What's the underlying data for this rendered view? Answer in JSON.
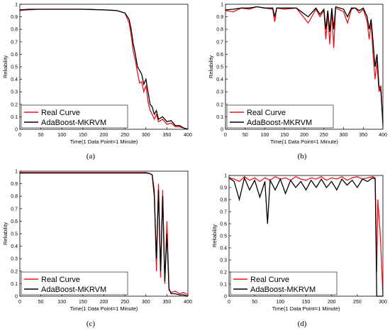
{
  "captions": [
    "(a)",
    "(b)",
    "(c)",
    "(d)"
  ],
  "chart_data": [
    {
      "type": "line",
      "xlabel": "Time(1 Data Point=1 Minute)",
      "ylabel": "Reliability",
      "xlim": [
        0,
        400
      ],
      "ylim": [
        0,
        1
      ],
      "xticks": [
        0,
        50,
        100,
        150,
        200,
        250,
        300,
        350,
        400
      ],
      "yticks": [
        0,
        0.1,
        0.2,
        0.3,
        0.4,
        0.5,
        0.6,
        0.7,
        0.8,
        0.9,
        1
      ],
      "legend": "bottom-left",
      "series": [
        {
          "name": "Real Curve",
          "color": "#e8161b",
          "x": [
            0,
            20,
            50,
            100,
            150,
            200,
            230,
            250,
            260,
            265,
            270,
            275,
            280,
            285,
            290,
            295,
            300,
            305,
            310,
            315,
            320,
            325,
            330,
            340,
            350,
            360,
            370,
            380,
            390,
            400
          ],
          "y": [
            0.95,
            0.955,
            0.96,
            0.96,
            0.96,
            0.955,
            0.95,
            0.93,
            0.85,
            0.75,
            0.62,
            0.55,
            0.45,
            0.37,
            0.38,
            0.3,
            0.35,
            0.22,
            0.15,
            0.12,
            0.08,
            0.12,
            0.06,
            0.08,
            0.04,
            0.05,
            0.02,
            0.02,
            0.01,
            0.0
          ]
        },
        {
          "name": "AdaBoost-MKRVM",
          "color": "#000000",
          "x": [
            0,
            20,
            50,
            100,
            150,
            200,
            230,
            250,
            260,
            265,
            270,
            275,
            280,
            285,
            290,
            295,
            300,
            305,
            310,
            315,
            320,
            325,
            330,
            340,
            350,
            360,
            370,
            380,
            390,
            400
          ],
          "y": [
            0.955,
            0.96,
            0.96,
            0.96,
            0.96,
            0.955,
            0.95,
            0.93,
            0.88,
            0.8,
            0.68,
            0.6,
            0.5,
            0.47,
            0.44,
            0.36,
            0.4,
            0.3,
            0.2,
            0.18,
            0.12,
            0.15,
            0.08,
            0.1,
            0.06,
            0.07,
            0.03,
            0.03,
            0.01,
            0.0
          ]
        }
      ]
    },
    {
      "type": "line",
      "xlabel": "Time(1 Data Point=1 Minute)",
      "ylabel": "Reliability",
      "xlim": [
        0,
        400
      ],
      "ylim": [
        0,
        1
      ],
      "xticks": [
        0,
        50,
        100,
        150,
        200,
        250,
        300,
        350,
        400
      ],
      "yticks": [
        0,
        0.1,
        0.2,
        0.3,
        0.4,
        0.5,
        0.6,
        0.7,
        0.8,
        0.9,
        1
      ],
      "legend": "bottom-left",
      "series": [
        {
          "name": "Real Curve",
          "color": "#e8161b",
          "x": [
            0,
            20,
            40,
            60,
            80,
            100,
            120,
            125,
            130,
            150,
            180,
            210,
            230,
            240,
            250,
            255,
            260,
            265,
            270,
            275,
            280,
            300,
            310,
            320,
            330,
            340,
            350,
            360,
            365,
            370,
            375,
            380,
            385,
            390,
            395,
            400
          ],
          "y": [
            0.95,
            0.94,
            0.97,
            0.96,
            0.98,
            0.97,
            0.96,
            0.86,
            0.97,
            0.96,
            0.97,
            0.85,
            0.96,
            0.9,
            0.95,
            0.72,
            0.92,
            0.68,
            0.95,
            0.65,
            0.97,
            0.94,
            0.85,
            0.96,
            0.97,
            0.93,
            0.96,
            0.86,
            0.72,
            0.85,
            0.6,
            0.4,
            0.55,
            0.3,
            0.35,
            0.02
          ]
        },
        {
          "name": "AdaBoost-MKRVM",
          "color": "#000000",
          "x": [
            0,
            20,
            40,
            60,
            80,
            100,
            120,
            125,
            130,
            150,
            180,
            210,
            230,
            240,
            250,
            255,
            260,
            265,
            270,
            275,
            280,
            300,
            310,
            320,
            330,
            340,
            350,
            360,
            365,
            370,
            375,
            380,
            385,
            390,
            395,
            400
          ],
          "y": [
            0.955,
            0.96,
            0.97,
            0.97,
            0.98,
            0.97,
            0.97,
            0.9,
            0.97,
            0.97,
            0.97,
            0.9,
            0.97,
            0.92,
            0.96,
            0.8,
            0.95,
            0.78,
            0.97,
            0.8,
            0.98,
            0.96,
            0.9,
            0.97,
            0.97,
            0.95,
            0.97,
            0.9,
            0.8,
            0.88,
            0.7,
            0.5,
            0.6,
            0.35,
            0.3,
            0.05
          ]
        }
      ]
    },
    {
      "type": "line",
      "xlabel": "Time(1 Data Point=1 Minute)",
      "ylabel": "Reliability",
      "xlim": [
        0,
        400
      ],
      "ylim": [
        0,
        1
      ],
      "xticks": [
        0,
        50,
        100,
        150,
        200,
        250,
        300,
        350,
        400
      ],
      "yticks": [
        0,
        0.1,
        0.2,
        0.3,
        0.4,
        0.5,
        0.6,
        0.7,
        0.8,
        0.9,
        1
      ],
      "legend": "bottom-left",
      "series": [
        {
          "name": "Real Curve",
          "color": "#e8161b",
          "x": [
            0,
            50,
            100,
            150,
            200,
            250,
            300,
            310,
            315,
            320,
            325,
            330,
            335,
            340,
            345,
            350,
            355,
            360,
            370,
            380,
            390,
            400
          ],
          "y": [
            0.99,
            0.99,
            0.99,
            0.99,
            0.99,
            0.99,
            0.99,
            0.98,
            0.97,
            0.85,
            0.2,
            0.9,
            0.15,
            0.85,
            0.1,
            0.6,
            0.05,
            0.03,
            0.04,
            0.02,
            0.03,
            0.01
          ]
        },
        {
          "name": "AdaBoost-MKRVM",
          "color": "#000000",
          "x": [
            0,
            50,
            100,
            150,
            200,
            250,
            300,
            310,
            315,
            320,
            325,
            330,
            335,
            340,
            345,
            350,
            355,
            360,
            370,
            380,
            390,
            400
          ],
          "y": [
            0.985,
            0.985,
            0.985,
            0.985,
            0.985,
            0.985,
            0.985,
            0.98,
            0.97,
            0.8,
            0.3,
            0.85,
            0.2,
            0.8,
            0.12,
            0.5,
            0.06,
            0.02,
            0.02,
            0.01,
            0.01,
            0.0
          ]
        }
      ]
    },
    {
      "type": "line",
      "xlabel": "Time(1 Data Point=1 Minute)",
      "ylabel": "Reliability",
      "xlim": [
        0,
        300
      ],
      "ylim": [
        0,
        1
      ],
      "xticks": [
        0,
        50,
        100,
        150,
        200,
        250,
        300
      ],
      "yticks": [
        0,
        0.1,
        0.2,
        0.3,
        0.4,
        0.5,
        0.6,
        0.7,
        0.8,
        0.9,
        1
      ],
      "legend": "bottom-left",
      "series": [
        {
          "name": "Real Curve",
          "color": "#e8161b",
          "x": [
            0,
            10,
            20,
            30,
            40,
            50,
            60,
            70,
            80,
            90,
            100,
            110,
            120,
            130,
            140,
            150,
            160,
            170,
            180,
            190,
            200,
            210,
            220,
            230,
            240,
            250,
            260,
            270,
            280,
            285,
            288,
            290,
            295,
            300
          ],
          "y": [
            0.98,
            0.97,
            0.95,
            0.99,
            0.96,
            0.98,
            0.95,
            0.98,
            0.96,
            0.99,
            0.97,
            0.98,
            0.96,
            0.99,
            0.97,
            0.96,
            0.98,
            0.97,
            0.99,
            0.96,
            0.98,
            0.97,
            0.99,
            0.96,
            0.98,
            0.99,
            0.97,
            0.98,
            0.99,
            0.98,
            0.2,
            0.8,
            0.5,
            0.0
          ]
        },
        {
          "name": "AdaBoost-MKRVM",
          "color": "#000000",
          "x": [
            0,
            10,
            20,
            30,
            40,
            50,
            60,
            70,
            75,
            80,
            90,
            100,
            110,
            120,
            130,
            140,
            150,
            160,
            170,
            180,
            190,
            200,
            210,
            220,
            230,
            240,
            250,
            260,
            270,
            280,
            285,
            288,
            290,
            295,
            300
          ],
          "y": [
            0.98,
            0.95,
            0.8,
            0.98,
            0.88,
            0.96,
            0.82,
            0.95,
            0.6,
            0.96,
            0.88,
            0.97,
            0.85,
            0.96,
            0.9,
            0.95,
            0.88,
            0.96,
            0.9,
            0.97,
            0.9,
            0.95,
            0.88,
            0.97,
            0.92,
            0.96,
            0.9,
            0.97,
            0.95,
            0.98,
            0.97,
            0.0,
            0.0,
            0.0,
            0.0
          ]
        }
      ]
    }
  ]
}
